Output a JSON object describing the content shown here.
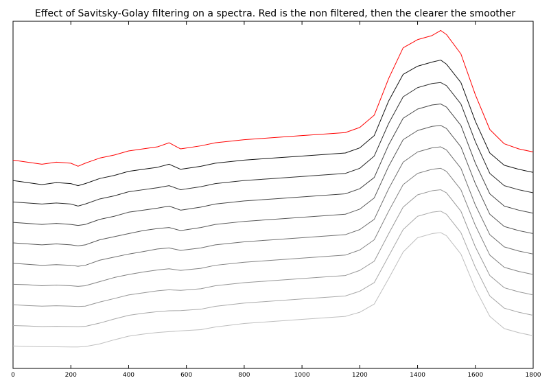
{
  "chart_data": {
    "type": "line",
    "title": "Effect of Savitsky-Golay filtering on a spectra. Red is the non filtered, then the clearer the smoother",
    "xlabel": "",
    "ylabel": "",
    "xlim": [
      0,
      1800
    ],
    "ylim": [
      0,
      17
    ],
    "xticks": [
      0,
      200,
      400,
      600,
      800,
      1000,
      1200,
      1400,
      1600,
      1800
    ],
    "yticks_visible": false,
    "grid": false,
    "legend": "none",
    "offset_step": 1,
    "x": [
      0,
      50,
      100,
      150,
      200,
      225,
      250,
      300,
      350,
      400,
      450,
      500,
      540,
      580,
      650,
      700,
      800,
      900,
      1000,
      1100,
      1150,
      1200,
      1250,
      1300,
      1350,
      1400,
      1450,
      1480,
      1500,
      1550,
      1600,
      1650,
      1700,
      1750,
      1800
    ],
    "series": [
      {
        "smoothing_rank": 0,
        "color": "#ff0000",
        "values": [
          10.2,
          10.1,
          10.0,
          10.1,
          10.05,
          9.9,
          10.05,
          10.3,
          10.45,
          10.65,
          10.75,
          10.85,
          11.05,
          10.75,
          10.9,
          11.05,
          11.2,
          11.3,
          11.4,
          11.5,
          11.55,
          11.8,
          12.4,
          14.2,
          15.7,
          16.1,
          16.3,
          16.55,
          16.35,
          15.4,
          13.4,
          11.7,
          11.0,
          10.75,
          10.6
        ]
      },
      {
        "smoothing_rank": 1,
        "color": "#111111",
        "values": [
          10.2,
          10.1,
          10.0,
          10.1,
          10.05,
          9.95,
          10.05,
          10.3,
          10.45,
          10.65,
          10.75,
          10.85,
          11.0,
          10.75,
          10.9,
          11.05,
          11.2,
          11.3,
          11.4,
          11.5,
          11.55,
          11.8,
          12.4,
          14.1,
          15.4,
          15.8,
          16.0,
          16.1,
          15.9,
          15.0,
          13.1,
          11.55,
          10.95,
          10.75,
          10.6
        ]
      },
      {
        "smoothing_rank": 2,
        "color": "#2b2b2b",
        "values": [
          10.15,
          10.1,
          10.05,
          10.1,
          10.05,
          9.95,
          10.05,
          10.3,
          10.45,
          10.65,
          10.75,
          10.85,
          10.95,
          10.75,
          10.9,
          11.05,
          11.2,
          11.3,
          11.4,
          11.5,
          11.55,
          11.8,
          12.4,
          14.0,
          15.3,
          15.75,
          15.95,
          16.0,
          15.85,
          14.95,
          13.1,
          11.55,
          10.95,
          10.75,
          10.6
        ]
      },
      {
        "smoothing_rank": 3,
        "color": "#444444",
        "values": [
          10.15,
          10.1,
          10.05,
          10.1,
          10.05,
          10.0,
          10.05,
          10.3,
          10.45,
          10.65,
          10.75,
          10.85,
          10.95,
          10.75,
          10.9,
          11.05,
          11.2,
          11.3,
          11.4,
          11.5,
          11.55,
          11.8,
          12.35,
          13.95,
          15.25,
          15.7,
          15.9,
          15.95,
          15.8,
          14.9,
          13.05,
          11.55,
          10.95,
          10.75,
          10.6
        ]
      },
      {
        "smoothing_rank": 4,
        "color": "#585858",
        "values": [
          10.15,
          10.1,
          10.05,
          10.1,
          10.05,
          10.0,
          10.05,
          10.3,
          10.45,
          10.6,
          10.75,
          10.85,
          10.9,
          10.75,
          10.9,
          11.05,
          11.2,
          11.3,
          11.4,
          11.5,
          11.55,
          11.8,
          12.35,
          13.9,
          15.2,
          15.65,
          15.85,
          15.9,
          15.75,
          14.85,
          13.05,
          11.55,
          10.95,
          10.75,
          10.6
        ]
      },
      {
        "smoothing_rank": 5,
        "color": "#6e6e6e",
        "values": [
          10.15,
          10.1,
          10.05,
          10.08,
          10.05,
          10.0,
          10.05,
          10.3,
          10.45,
          10.6,
          10.72,
          10.85,
          10.9,
          10.78,
          10.9,
          11.05,
          11.2,
          11.3,
          11.4,
          11.5,
          11.55,
          11.8,
          12.3,
          13.8,
          15.1,
          15.6,
          15.8,
          15.85,
          15.7,
          14.8,
          13.0,
          11.55,
          10.95,
          10.75,
          10.6
        ]
      },
      {
        "smoothing_rank": 6,
        "color": "#828282",
        "values": [
          10.12,
          10.1,
          10.05,
          10.08,
          10.05,
          10.02,
          10.05,
          10.25,
          10.45,
          10.6,
          10.72,
          10.82,
          10.88,
          10.8,
          10.9,
          11.05,
          11.2,
          11.3,
          11.4,
          11.5,
          11.55,
          11.8,
          12.3,
          13.7,
          15.0,
          15.55,
          15.75,
          15.8,
          15.65,
          14.75,
          13.0,
          11.55,
          10.95,
          10.75,
          10.6
        ]
      },
      {
        "smoothing_rank": 7,
        "color": "#969696",
        "values": [
          10.12,
          10.08,
          10.05,
          10.07,
          10.05,
          10.03,
          10.05,
          10.25,
          10.42,
          10.6,
          10.7,
          10.8,
          10.85,
          10.82,
          10.9,
          11.05,
          11.2,
          11.3,
          11.4,
          11.5,
          11.55,
          11.8,
          12.25,
          13.6,
          14.9,
          15.5,
          15.7,
          15.75,
          15.6,
          14.7,
          12.95,
          11.55,
          10.95,
          10.75,
          10.6
        ]
      },
      {
        "smoothing_rank": 8,
        "color": "#a8a8a8",
        "values": [
          10.1,
          10.08,
          10.05,
          10.06,
          10.05,
          10.04,
          10.06,
          10.22,
          10.42,
          10.6,
          10.7,
          10.78,
          10.82,
          10.83,
          10.9,
          11.04,
          11.2,
          11.3,
          11.4,
          11.5,
          11.55,
          11.78,
          12.2,
          13.5,
          14.8,
          15.45,
          15.65,
          15.7,
          15.55,
          14.65,
          12.95,
          11.55,
          10.95,
          10.75,
          10.6
        ]
      },
      {
        "smoothing_rank": 9,
        "color": "#bebebe",
        "values": [
          10.1,
          10.08,
          10.06,
          10.06,
          10.05,
          10.05,
          10.07,
          10.2,
          10.4,
          10.58,
          10.68,
          10.76,
          10.8,
          10.84,
          10.9,
          11.03,
          11.2,
          11.3,
          11.4,
          11.5,
          11.55,
          11.75,
          12.15,
          13.4,
          14.7,
          15.4,
          15.6,
          15.65,
          15.5,
          14.6,
          12.9,
          11.55,
          10.95,
          10.75,
          10.6
        ]
      }
    ]
  }
}
